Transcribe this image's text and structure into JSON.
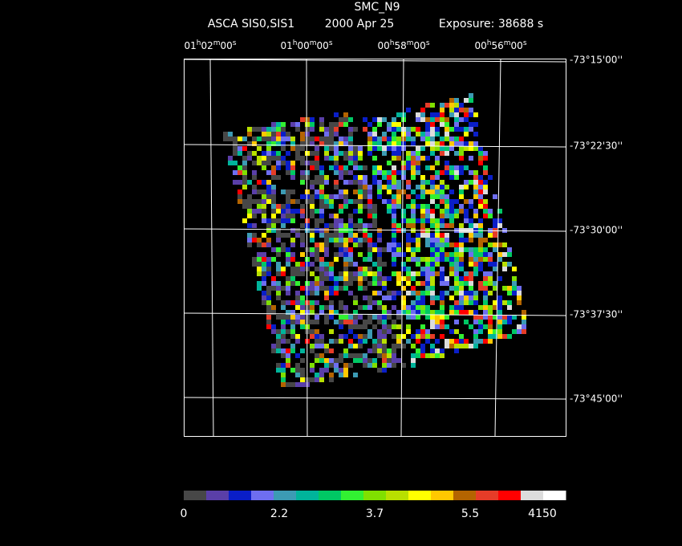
{
  "header": {
    "title": "SMC_N9",
    "instrument": "ASCA SIS0,SIS1",
    "date": "2000 Apr 25",
    "exposure": "Exposure: 38688 s"
  },
  "ra_axis": {
    "units": [
      "h",
      "m",
      "s"
    ],
    "labels": [
      [
        "01",
        "02",
        "00"
      ],
      [
        "01",
        "00",
        "00"
      ],
      [
        "00",
        "58",
        "00"
      ],
      [
        "00",
        "56",
        "00"
      ]
    ]
  },
  "dec_axis": {
    "labels": [
      "-73°15'00''",
      "-73°22'30''",
      "-73°30'00''",
      "-73°37'30''",
      "-73°45'00''"
    ]
  },
  "colorbar": {
    "colors": [
      "#474747",
      "#5a3fa8",
      "#0a1ec8",
      "#6e6ef0",
      "#3c9bb4",
      "#00b49b",
      "#00c864",
      "#32f032",
      "#80e000",
      "#b8e000",
      "#ffff00",
      "#ffc800",
      "#b46400",
      "#e63c28",
      "#ff0000",
      "#dcdcdc",
      "#ffffff"
    ],
    "labels": [
      "0",
      "2.2",
      "3.7",
      "5.5",
      "4150"
    ]
  }
}
